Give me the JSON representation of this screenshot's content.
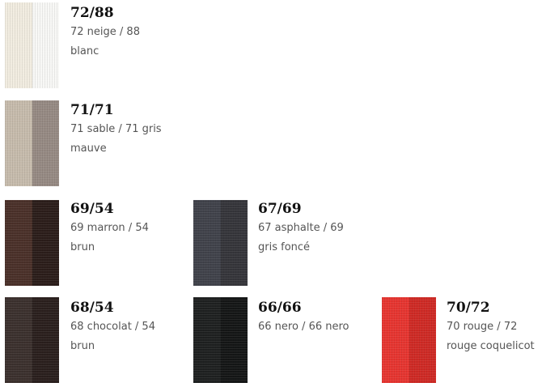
{
  "items": [
    {
      "code": "72/88",
      "desc": "72 neige / 88 blanc",
      "colors": [
        "#f1ece0",
        "#f7f7f5"
      ]
    },
    {
      "code": "71/71",
      "desc": "71 sable / 71 gris mauve",
      "colors": [
        "#c6bbac",
        "#968a83"
      ]
    },
    {
      "code": "69/54",
      "desc": "69 marron / 54 brun",
      "colors": [
        "#4a3029",
        "#2b1d1a"
      ]
    },
    {
      "code": "67/69",
      "desc": "67 asphalte / 69 gris foncé",
      "colors": [
        "#40424a",
        "#35353a"
      ]
    },
    {
      "code": "68/54",
      "desc": "68 chocolat / 54 brun",
      "colors": [
        "#3b302d",
        "#2a1f1d"
      ]
    },
    {
      "code": "66/66",
      "desc": "66 nero / 66 nero",
      "colors": [
        "#1e2020",
        "#141616"
      ]
    },
    {
      "code": "70/72",
      "desc": "70 rouge / 72 rouge coquelicot",
      "colors": [
        "#e63530",
        "#cf2a25"
      ]
    }
  ]
}
